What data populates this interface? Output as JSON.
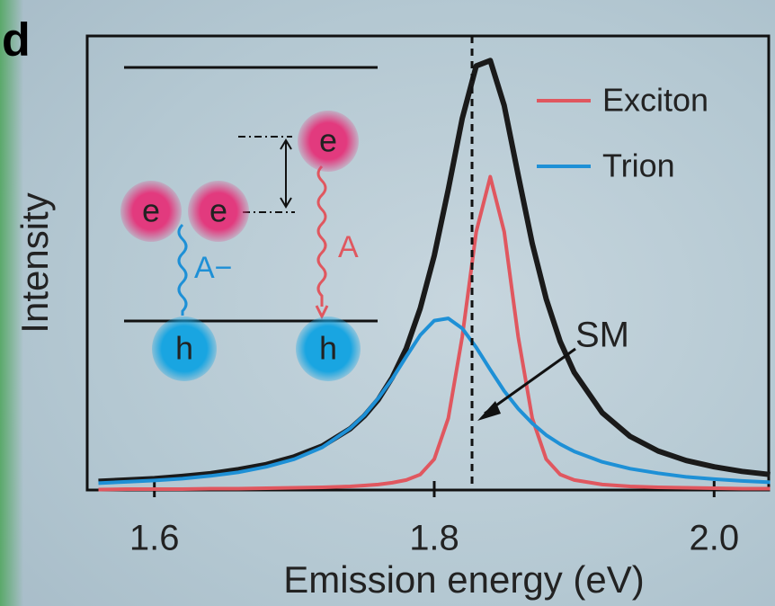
{
  "chart_data": {
    "type": "line",
    "panel_label": "d",
    "xlabel": "Emission energy (eV)",
    "ylabel": "Intensity",
    "xlim": [
      1.552,
      2.039
    ],
    "ylim": [
      0,
      1
    ],
    "xticks": [
      1.6,
      1.8,
      {
        "value": 2,
        "label": "2.0"
      }
    ],
    "legend": "upper right",
    "x": [
      1.56,
      1.58,
      1.6,
      1.62,
      1.64,
      1.66,
      1.68,
      1.7,
      1.72,
      1.74,
      1.75,
      1.76,
      1.77,
      1.78,
      1.79,
      1.8,
      1.81,
      1.82,
      1.83,
      1.84,
      1.85,
      1.86,
      1.87,
      1.88,
      1.89,
      1.9,
      1.92,
      1.94,
      1.96,
      1.98,
      2.0,
      2.02,
      2.04
    ],
    "series": [
      {
        "color": "#1a1a1a",
        "values": [
          0.019,
          0.022,
          0.025,
          0.03,
          0.036,
          0.045,
          0.056,
          0.073,
          0.097,
          0.135,
          0.163,
          0.199,
          0.248,
          0.312,
          0.4,
          0.516,
          0.662,
          0.818,
          0.934,
          0.946,
          0.847,
          0.693,
          0.543,
          0.421,
          0.327,
          0.259,
          0.17,
          0.118,
          0.086,
          0.065,
          0.051,
          0.041,
          0.034
        ]
      },
      {
        "name": "Exciton",
        "color": "#e0575f",
        "values": [
          0.001,
          0.002,
          0.002,
          0.002,
          0.003,
          0.003,
          0.004,
          0.005,
          0.006,
          0.008,
          0.01,
          0.012,
          0.016,
          0.022,
          0.034,
          0.068,
          0.158,
          0.337,
          0.569,
          0.69,
          0.569,
          0.337,
          0.158,
          0.068,
          0.034,
          0.022,
          0.012,
          0.008,
          0.006,
          0.005,
          0.004,
          0.003,
          0.003
        ]
      },
      {
        "name": "Trion",
        "color": "#1e90d6",
        "values": [
          0.015,
          0.018,
          0.021,
          0.025,
          0.031,
          0.039,
          0.051,
          0.068,
          0.094,
          0.136,
          0.165,
          0.202,
          0.245,
          0.294,
          0.341,
          0.373,
          0.378,
          0.356,
          0.314,
          0.265,
          0.218,
          0.179,
          0.147,
          0.121,
          0.101,
          0.085,
          0.062,
          0.047,
          0.037,
          0.029,
          0.024,
          0.02,
          0.017
        ]
      }
    ],
    "vline": 1.827,
    "annotation": "SM",
    "inset": {
      "electrons": [
        "e",
        "e",
        "e"
      ],
      "holes": [
        "h",
        "h"
      ],
      "transitions": [
        "A−",
        "A"
      ]
    }
  }
}
